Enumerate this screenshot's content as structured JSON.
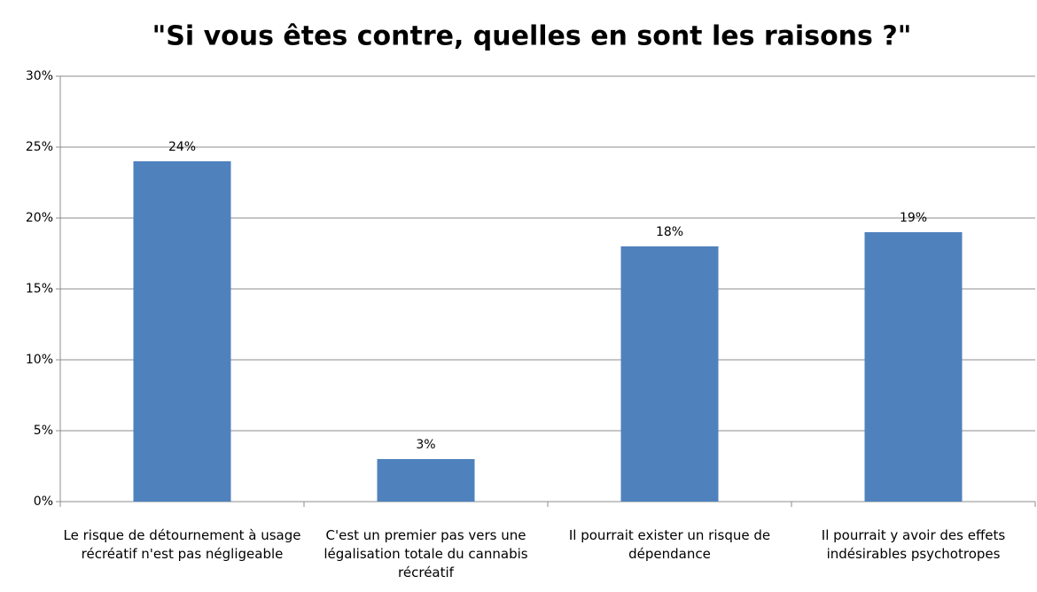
{
  "chart_data": {
    "type": "bar",
    "title": "\"Si vous êtes contre, quelles en sont les raisons ?\"",
    "categories": [
      "Le risque de détournement à usage récréatif n'est pas négligeable",
      "C'est un premier pas vers une légalisation totale du cannabis récréatif",
      "Il pourrait exister un risque de dépendance",
      "Il pourrait y avoir des effets indésirables psychotropes"
    ],
    "values": [
      24,
      3,
      18,
      19
    ],
    "value_labels": [
      "24%",
      "3%",
      "18%",
      "19%"
    ],
    "color": "#4f81bd",
    "ylim": [
      0,
      30
    ],
    "yticks": [
      {
        "value": 0,
        "label": "0%"
      },
      {
        "value": 5,
        "label": "5%"
      },
      {
        "value": 10,
        "label": "10%"
      },
      {
        "value": 15,
        "label": "15%"
      },
      {
        "value": 20,
        "label": "20%"
      },
      {
        "value": 25,
        "label": "25%"
      },
      {
        "value": 30,
        "label": "30%"
      }
    ],
    "grid": true
  }
}
